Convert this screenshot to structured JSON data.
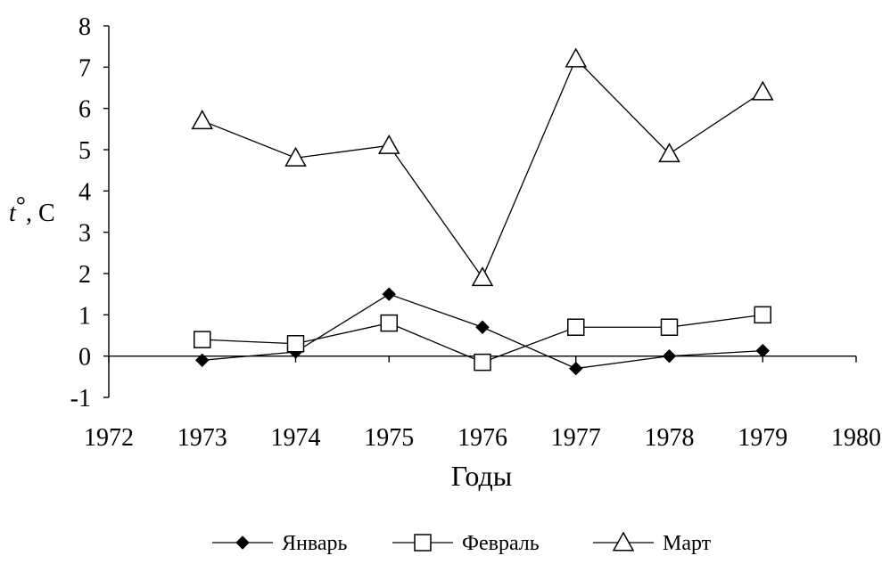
{
  "chart_data": {
    "type": "line",
    "title": "",
    "xlabel": "Годы",
    "ylabel_main": "t",
    "ylabel_degree": "°",
    "ylabel_rest": ", С",
    "xlim": [
      1972,
      1980
    ],
    "ylim": [
      -1,
      8
    ],
    "x_ticks": [
      1972,
      1973,
      1974,
      1975,
      1976,
      1977,
      1978,
      1979,
      1980
    ],
    "y_ticks": [
      -1,
      0,
      1,
      2,
      3,
      4,
      5,
      6,
      7,
      8
    ],
    "x": [
      1973,
      1974,
      1975,
      1976,
      1977,
      1978,
      1979
    ],
    "grid": false,
    "legend_position": "bottom",
    "series": [
      {
        "name": "Январь",
        "marker": "filled-diamond",
        "values": [
          -0.1,
          0.1,
          1.5,
          0.7,
          -0.3,
          0.0,
          0.13
        ]
      },
      {
        "name": "Февраль",
        "marker": "open-square",
        "values": [
          0.4,
          0.3,
          0.8,
          -0.15,
          0.7,
          0.7,
          1.0
        ]
      },
      {
        "name": "Март",
        "marker": "open-triangle",
        "values": [
          5.7,
          4.8,
          5.1,
          1.9,
          7.2,
          4.9,
          6.4
        ]
      }
    ]
  }
}
